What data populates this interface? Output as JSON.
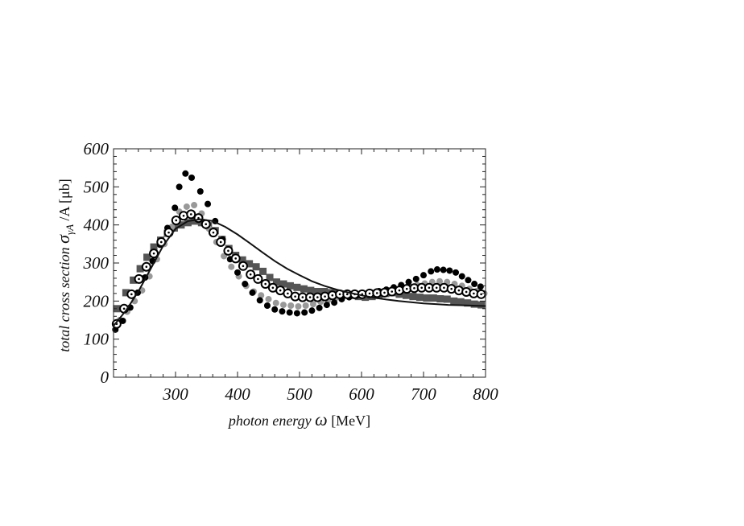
{
  "chart_data": {
    "type": "scatter",
    "xlabel": {
      "italic_part": "photon energy ",
      "symbol": "ω",
      "unit": " [MeV]"
    },
    "ylabel": {
      "italic_part": "total cross section ",
      "symbol": "σ",
      "subscript": "γA",
      "unit": " /A [μb]"
    },
    "xlim": [
      200,
      800
    ],
    "ylim": [
      0,
      600
    ],
    "x_ticks": [
      300,
      400,
      500,
      600,
      700,
      800
    ],
    "y_ticks": [
      0,
      100,
      200,
      300,
      400,
      500,
      600
    ],
    "grid": false,
    "legend": "none",
    "series": [
      {
        "marker": "filled-square",
        "color": "#555555",
        "points": [
          [
            205,
            180
          ],
          [
            220,
            222
          ],
          [
            232,
            255
          ],
          [
            243,
            285
          ],
          [
            254,
            315
          ],
          [
            265,
            342
          ],
          [
            276,
            360
          ],
          [
            287,
            378
          ],
          [
            298,
            392
          ],
          [
            309,
            400
          ],
          [
            320,
            406
          ],
          [
            331,
            410
          ],
          [
            342,
            406
          ],
          [
            353,
            398
          ],
          [
            364,
            385
          ],
          [
            375,
            362
          ],
          [
            386,
            338
          ],
          [
            397,
            320
          ],
          [
            408,
            308
          ],
          [
            419,
            298
          ],
          [
            430,
            290
          ],
          [
            441,
            278
          ],
          [
            452,
            262
          ],
          [
            463,
            250
          ],
          [
            474,
            245
          ],
          [
            485,
            240
          ],
          [
            496,
            236
          ],
          [
            507,
            232
          ],
          [
            518,
            228
          ],
          [
            529,
            225
          ],
          [
            540,
            225
          ],
          [
            551,
            222
          ],
          [
            562,
            220
          ],
          [
            573,
            218
          ],
          [
            584,
            215
          ],
          [
            595,
            212
          ],
          [
            606,
            210
          ],
          [
            617,
            212
          ],
          [
            628,
            215
          ],
          [
            639,
            220
          ],
          [
            650,
            222
          ],
          [
            661,
            218
          ],
          [
            672,
            215
          ],
          [
            683,
            212
          ],
          [
            694,
            210
          ],
          [
            705,
            208
          ],
          [
            716,
            208
          ],
          [
            727,
            206
          ],
          [
            738,
            205
          ],
          [
            749,
            200
          ],
          [
            760,
            198
          ],
          [
            771,
            195
          ],
          [
            782,
            192
          ],
          [
            793,
            190
          ]
        ]
      },
      {
        "marker": "filled-circle",
        "color": "#999999",
        "points": [
          [
            210,
            150
          ],
          [
            222,
            172
          ],
          [
            234,
            200
          ],
          [
            246,
            228
          ],
          [
            258,
            265
          ],
          [
            270,
            310
          ],
          [
            282,
            350
          ],
          [
            294,
            395
          ],
          [
            306,
            435
          ],
          [
            318,
            448
          ],
          [
            330,
            452
          ],
          [
            342,
            430
          ],
          [
            354,
            390
          ],
          [
            366,
            355
          ],
          [
            378,
            318
          ],
          [
            390,
            290
          ],
          [
            402,
            265
          ],
          [
            414,
            240
          ],
          [
            426,
            225
          ],
          [
            438,
            215
          ],
          [
            450,
            205
          ],
          [
            462,
            195
          ],
          [
            474,
            190
          ],
          [
            486,
            188
          ],
          [
            498,
            186
          ],
          [
            510,
            188
          ],
          [
            522,
            192
          ],
          [
            534,
            198
          ],
          [
            546,
            202
          ],
          [
            558,
            208
          ],
          [
            570,
            212
          ],
          [
            582,
            215
          ],
          [
            594,
            218
          ],
          [
            606,
            218
          ],
          [
            618,
            220
          ],
          [
            630,
            222
          ],
          [
            642,
            225
          ],
          [
            654,
            228
          ],
          [
            666,
            232
          ],
          [
            678,
            238
          ],
          [
            690,
            242
          ],
          [
            702,
            246
          ],
          [
            714,
            250
          ],
          [
            726,
            252
          ],
          [
            738,
            250
          ],
          [
            750,
            245
          ],
          [
            762,
            240
          ],
          [
            774,
            232
          ],
          [
            786,
            226
          ],
          [
            798,
            220
          ]
        ]
      },
      {
        "marker": "filled-circle",
        "color": "#000000",
        "points": [
          [
            203,
            125
          ],
          [
            215,
            148
          ],
          [
            227,
            183
          ],
          [
            239,
            222
          ],
          [
            251,
            262
          ],
          [
            263,
            305
          ],
          [
            275,
            348
          ],
          [
            287,
            392
          ],
          [
            299,
            445
          ],
          [
            306,
            500
          ],
          [
            316,
            535
          ],
          [
            326,
            524
          ],
          [
            340,
            488
          ],
          [
            352,
            455
          ],
          [
            364,
            410
          ],
          [
            376,
            362
          ],
          [
            388,
            310
          ],
          [
            400,
            275
          ],
          [
            412,
            245
          ],
          [
            424,
            222
          ],
          [
            436,
            202
          ],
          [
            448,
            188
          ],
          [
            460,
            178
          ],
          [
            472,
            173
          ],
          [
            484,
            170
          ],
          [
            496,
            168
          ],
          [
            508,
            170
          ],
          [
            520,
            175
          ],
          [
            532,
            182
          ],
          [
            544,
            190
          ],
          [
            556,
            196
          ],
          [
            568,
            205
          ],
          [
            580,
            210
          ],
          [
            592,
            214
          ],
          [
            604,
            218
          ],
          [
            616,
            222
          ],
          [
            628,
            226
          ],
          [
            640,
            230
          ],
          [
            652,
            236
          ],
          [
            664,
            242
          ],
          [
            676,
            250
          ],
          [
            688,
            258
          ],
          [
            700,
            268
          ],
          [
            712,
            278
          ],
          [
            722,
            283
          ],
          [
            732,
            282
          ],
          [
            742,
            280
          ],
          [
            752,
            275
          ],
          [
            762,
            265
          ],
          [
            772,
            255
          ],
          [
            782,
            245
          ],
          [
            792,
            238
          ]
        ]
      },
      {
        "marker": "open-circle-dot",
        "color": "#000000",
        "points": [
          [
            205,
            140
          ],
          [
            217,
            180
          ],
          [
            229,
            218
          ],
          [
            241,
            258
          ],
          [
            253,
            290
          ],
          [
            265,
            325
          ],
          [
            277,
            355
          ],
          [
            289,
            380
          ],
          [
            301,
            412
          ],
          [
            313,
            424
          ],
          [
            325,
            428
          ],
          [
            337,
            418
          ],
          [
            349,
            402
          ],
          [
            361,
            380
          ],
          [
            373,
            355
          ],
          [
            385,
            332
          ],
          [
            397,
            312
          ],
          [
            409,
            292
          ],
          [
            421,
            270
          ],
          [
            433,
            258
          ],
          [
            445,
            245
          ],
          [
            457,
            235
          ],
          [
            469,
            228
          ],
          [
            481,
            220
          ],
          [
            493,
            212
          ],
          [
            505,
            210
          ],
          [
            517,
            210
          ],
          [
            529,
            210
          ],
          [
            541,
            212
          ],
          [
            553,
            215
          ],
          [
            565,
            218
          ],
          [
            577,
            218
          ],
          [
            589,
            218
          ],
          [
            601,
            218
          ],
          [
            613,
            220
          ],
          [
            625,
            221
          ],
          [
            637,
            222
          ],
          [
            649,
            225
          ],
          [
            661,
            228
          ],
          [
            673,
            232
          ],
          [
            685,
            234
          ],
          [
            697,
            235
          ],
          [
            709,
            235
          ],
          [
            721,
            235
          ],
          [
            733,
            235
          ],
          [
            745,
            232
          ],
          [
            757,
            228
          ],
          [
            769,
            224
          ],
          [
            781,
            220
          ],
          [
            793,
            218
          ]
        ]
      },
      {
        "marker": "line",
        "color": "#111111",
        "points": [
          [
            200,
            135
          ],
          [
            220,
            175
          ],
          [
            240,
            225
          ],
          [
            260,
            285
          ],
          [
            280,
            345
          ],
          [
            300,
            390
          ],
          [
            320,
            410
          ],
          [
            340,
            415
          ],
          [
            360,
            410
          ],
          [
            380,
            395
          ],
          [
            400,
            375
          ],
          [
            420,
            352
          ],
          [
            440,
            328
          ],
          [
            460,
            305
          ],
          [
            480,
            285
          ],
          [
            500,
            268
          ],
          [
            520,
            252
          ],
          [
            540,
            240
          ],
          [
            560,
            230
          ],
          [
            580,
            222
          ],
          [
            600,
            215
          ],
          [
            620,
            209
          ],
          [
            640,
            204
          ],
          [
            660,
            200
          ],
          [
            680,
            197
          ],
          [
            700,
            194
          ],
          [
            720,
            192
          ],
          [
            740,
            190
          ],
          [
            760,
            189
          ],
          [
            780,
            188
          ],
          [
            800,
            187
          ]
        ]
      }
    ]
  }
}
